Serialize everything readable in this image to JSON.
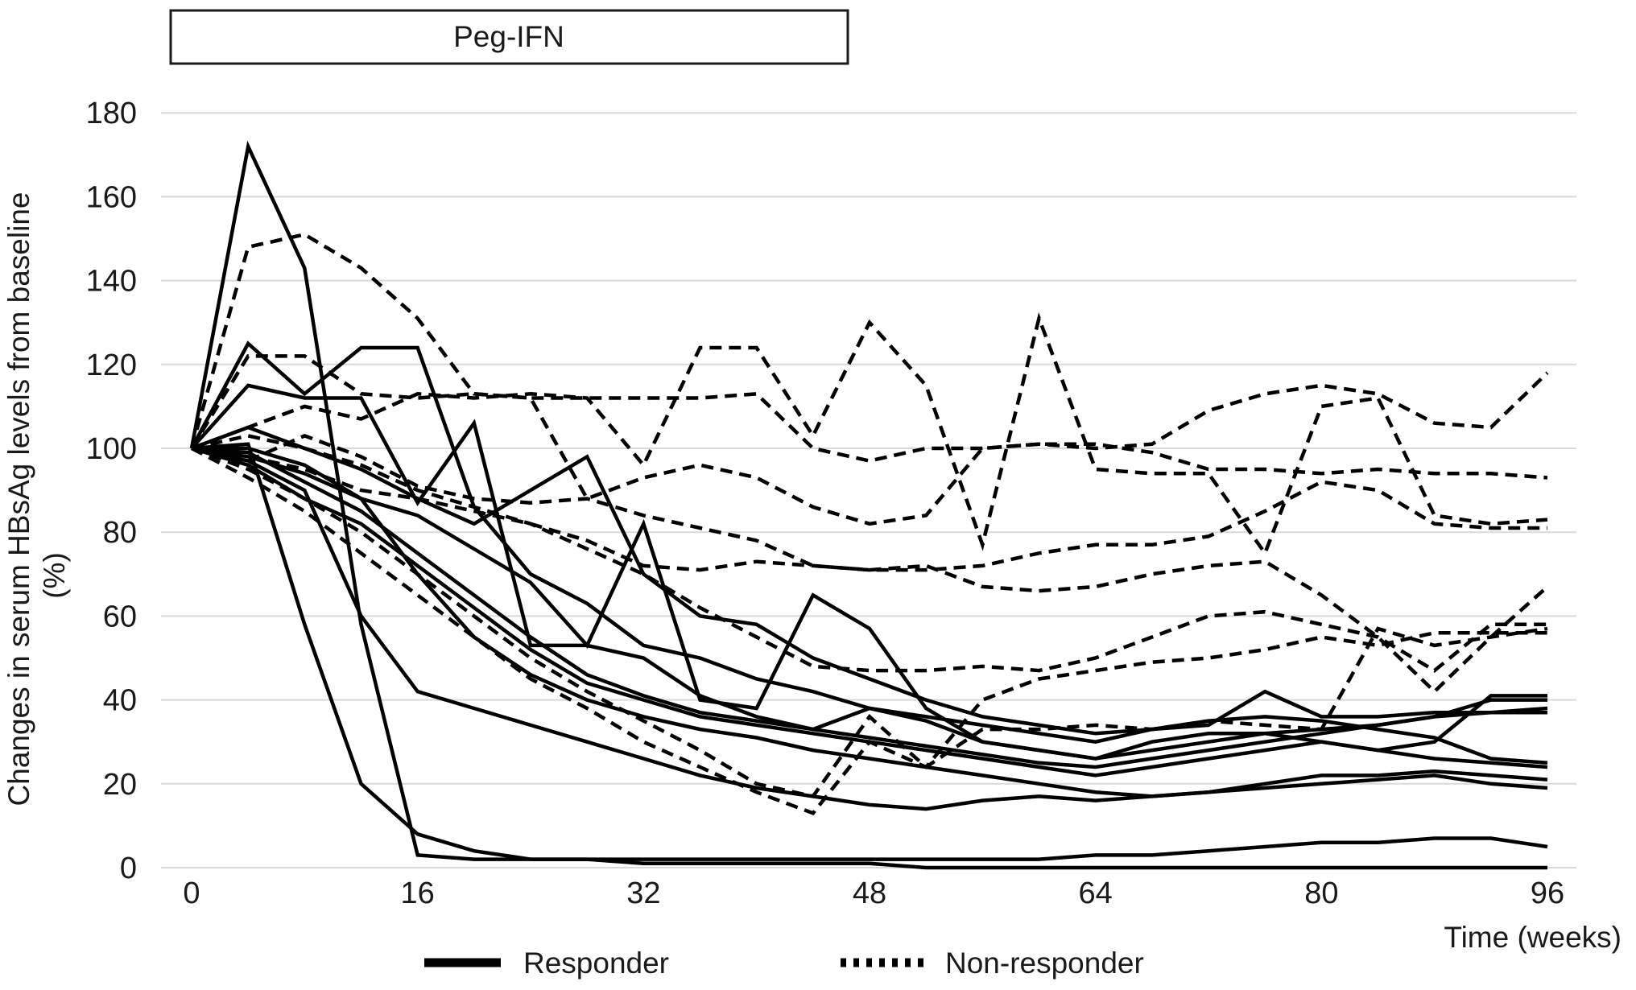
{
  "figure": {
    "treatment_label": "Peg-IFN",
    "x_axis_title": "Time (weeks)",
    "y_axis_title": "Changes in serum HBsAg levels from baseline",
    "y_axis_units": "(%)"
  },
  "colors": {
    "line": "#000000",
    "grid": "#d9d9d9",
    "text": "#1a1a1a",
    "background": "#ffffff",
    "box_border": "#1a1a1a"
  },
  "chart_data": {
    "type": "line",
    "title": "Peg-IFN",
    "xlabel": "Time (weeks)",
    "ylabel": "Changes in serum HBsAg levels from baseline (%)",
    "xlim": [
      0,
      96
    ],
    "ylim": [
      0,
      180
    ],
    "grid": "horizontal",
    "legend_position": "bottom-center",
    "treatment_box": {
      "label": "Peg-IFN",
      "weeks": [
        0,
        46
      ]
    },
    "x_ticks": [
      0,
      16,
      32,
      48,
      64,
      80,
      96
    ],
    "y_ticks": [
      0,
      20,
      40,
      60,
      80,
      100,
      120,
      140,
      160,
      180
    ],
    "legend": [
      {
        "label": "Responder",
        "style": "solid"
      },
      {
        "label": "Non-responder",
        "style": "dashed"
      }
    ],
    "x_weeks": [
      0,
      4,
      8,
      12,
      16,
      20,
      24,
      28,
      32,
      36,
      40,
      44,
      48,
      52,
      56,
      60,
      64,
      68,
      72,
      76,
      80,
      84,
      88,
      92,
      96
    ],
    "series": [
      {
        "name": "responder-1",
        "group": "responder",
        "style": "solid",
        "values": [
          100,
          172,
          143,
          58,
          3,
          2,
          2,
          2,
          1,
          1,
          1,
          1,
          1,
          0,
          0,
          0,
          0,
          0,
          0,
          0,
          0,
          0,
          0,
          0,
          0
        ]
      },
      {
        "name": "responder-2",
        "group": "responder",
        "style": "solid",
        "values": [
          100,
          101,
          58,
          20,
          8,
          4,
          2,
          2,
          2,
          2,
          2,
          2,
          2,
          2,
          2,
          2,
          3,
          3,
          4,
          5,
          6,
          6,
          7,
          7,
          5
        ]
      },
      {
        "name": "responder-3",
        "group": "responder",
        "style": "solid",
        "values": [
          100,
          97,
          90,
          60,
          42,
          38,
          34,
          30,
          26,
          22,
          19,
          17,
          15,
          14,
          16,
          17,
          16,
          17,
          18,
          19,
          20,
          21,
          22,
          20,
          19
        ]
      },
      {
        "name": "responder-4",
        "group": "responder",
        "style": "solid",
        "values": [
          100,
          100,
          96,
          88,
          70,
          55,
          46,
          40,
          36,
          33,
          31,
          28,
          26,
          24,
          22,
          20,
          18,
          17,
          18,
          20,
          22,
          22,
          23,
          22,
          21
        ]
      },
      {
        "name": "responder-5",
        "group": "responder",
        "style": "solid",
        "values": [
          100,
          125,
          113,
          124,
          124,
          86,
          70,
          63,
          53,
          50,
          45,
          42,
          38,
          36,
          34,
          32,
          30,
          33,
          35,
          36,
          35,
          33,
          31,
          26,
          25
        ]
      },
      {
        "name": "responder-6",
        "group": "responder",
        "style": "solid",
        "values": [
          100,
          115,
          112,
          112,
          87,
          106,
          53,
          53,
          50,
          41,
          36,
          33,
          38,
          35,
          30,
          28,
          26,
          30,
          32,
          32,
          30,
          28,
          26,
          25,
          24
        ]
      },
      {
        "name": "responder-7",
        "group": "responder",
        "style": "solid",
        "values": [
          100,
          105,
          100,
          95,
          88,
          82,
          90,
          98,
          70,
          60,
          58,
          50,
          45,
          40,
          36,
          34,
          32,
          33,
          34,
          42,
          36,
          36,
          37,
          37,
          38
        ]
      },
      {
        "name": "responder-8",
        "group": "responder",
        "style": "solid",
        "values": [
          100,
          98,
          94,
          88,
          84,
          76,
          68,
          53,
          82,
          40,
          38,
          65,
          57,
          38,
          30,
          28,
          26,
          28,
          30,
          32,
          33,
          34,
          36,
          37,
          37
        ]
      },
      {
        "name": "responder-9",
        "group": "responder",
        "style": "solid",
        "values": [
          100,
          96,
          88,
          82,
          72,
          62,
          52,
          44,
          40,
          36,
          34,
          32,
          30,
          28,
          26,
          24,
          22,
          24,
          26,
          28,
          30,
          28,
          30,
          41,
          41
        ]
      },
      {
        "name": "responder-10",
        "group": "responder",
        "style": "solid",
        "values": [
          100,
          99,
          92,
          85,
          75,
          65,
          55,
          46,
          41,
          37,
          35,
          33,
          31,
          29,
          27,
          25,
          24,
          26,
          28,
          30,
          32,
          34,
          36,
          40,
          40
        ]
      },
      {
        "name": "non-responder-1",
        "group": "non-responder",
        "style": "dashed",
        "values": [
          100,
          148,
          151,
          143,
          131,
          113,
          112,
          112,
          112,
          112,
          113,
          100,
          97,
          100,
          100,
          101,
          100,
          101,
          109,
          113,
          115,
          113,
          106,
          105,
          118
        ]
      },
      {
        "name": "non-responder-2",
        "group": "non-responder",
        "style": "dashed",
        "values": [
          100,
          122,
          122,
          113,
          112,
          113,
          112,
          88,
          93,
          96,
          93,
          86,
          82,
          84,
          100,
          101,
          101,
          99,
          95,
          95,
          94,
          95,
          94,
          94,
          93
        ]
      },
      {
        "name": "non-responder-3",
        "group": "non-responder",
        "style": "dashed",
        "values": [
          100,
          105,
          110,
          107,
          113,
          112,
          113,
          112,
          96,
          124,
          124,
          103,
          130,
          115,
          77,
          131,
          95,
          94,
          94,
          75,
          110,
          112,
          84,
          82,
          83
        ]
      },
      {
        "name": "non-responder-4",
        "group": "non-responder",
        "style": "dashed",
        "values": [
          100,
          97,
          103,
          98,
          91,
          88,
          87,
          88,
          84,
          81,
          78,
          72,
          71,
          71,
          72,
          75,
          77,
          77,
          79,
          85,
          92,
          90,
          82,
          81,
          81
        ]
      },
      {
        "name": "non-responder-5",
        "group": "non-responder",
        "style": "dashed",
        "values": [
          100,
          98,
          95,
          90,
          88,
          85,
          82,
          78,
          72,
          71,
          73,
          72,
          71,
          72,
          67,
          66,
          67,
          70,
          72,
          73,
          65,
          55,
          42,
          55,
          67
        ]
      },
      {
        "name": "non-responder-6",
        "group": "non-responder",
        "style": "dashed",
        "values": [
          100,
          95,
          88,
          80,
          70,
          60,
          50,
          42,
          35,
          28,
          20,
          17,
          36,
          24,
          33,
          33,
          34,
          33,
          35,
          34,
          33,
          57,
          53,
          55,
          57
        ]
      },
      {
        "name": "non-responder-7",
        "group": "non-responder",
        "style": "dashed",
        "values": [
          100,
          103,
          100,
          96,
          90,
          86,
          82,
          76,
          70,
          62,
          55,
          48,
          47,
          47,
          48,
          47,
          50,
          55,
          60,
          61,
          58,
          55,
          47,
          58,
          58
        ]
      },
      {
        "name": "non-responder-8",
        "group": "non-responder",
        "style": "dashed",
        "values": [
          100,
          93,
          85,
          75,
          65,
          55,
          45,
          38,
          30,
          24,
          18,
          13,
          30,
          24,
          40,
          45,
          47,
          49,
          50,
          52,
          55,
          53,
          56,
          56,
          56
        ]
      }
    ]
  }
}
